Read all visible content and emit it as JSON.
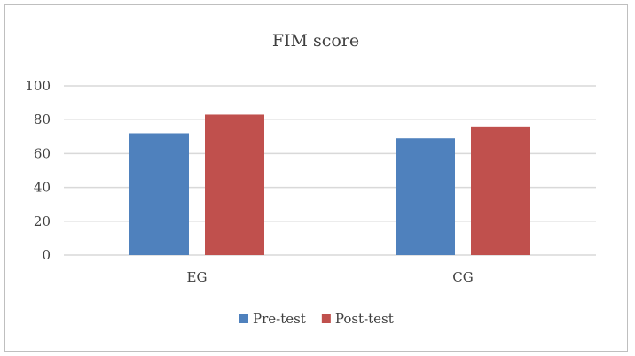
{
  "chart_data": {
    "type": "bar",
    "title": "FIM score",
    "categories": [
      "EG",
      "CG"
    ],
    "series": [
      {
        "name": "Pre-test",
        "values": [
          72,
          69
        ],
        "color": "#4f81bd"
      },
      {
        "name": "Post-test",
        "values": [
          83,
          76
        ],
        "color": "#c0504d"
      }
    ],
    "ylim": [
      0,
      100
    ],
    "yticks": [
      0,
      20,
      40,
      60,
      80,
      100
    ],
    "grid": true,
    "legend_position": "bottom"
  }
}
